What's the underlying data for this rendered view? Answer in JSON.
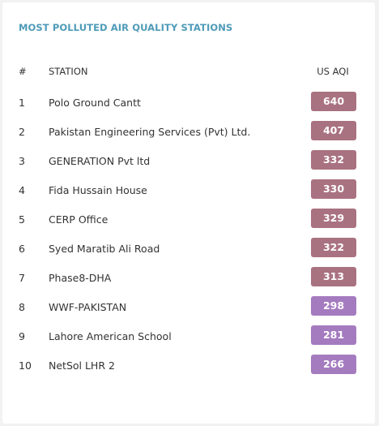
{
  "title": "MOST POLLUTED AIR QUALITY STATIONS",
  "headers": {
    "rank": "#",
    "station": "STATION",
    "aqi": "US AQI"
  },
  "colors": {
    "hazardous": "#a97280",
    "very_unhealthy": "#a57bbf",
    "title": "#4f9bb8"
  },
  "stations": [
    {
      "rank": "1",
      "name": "Polo Ground Cantt",
      "aqi": "640",
      "level": "hazardous"
    },
    {
      "rank": "2",
      "name": "Pakistan Engineering Services (Pvt) Ltd.",
      "aqi": "407",
      "level": "hazardous"
    },
    {
      "rank": "3",
      "name": "GENERATION Pvt ltd",
      "aqi": "332",
      "level": "hazardous"
    },
    {
      "rank": "4",
      "name": "Fida Hussain House",
      "aqi": "330",
      "level": "hazardous"
    },
    {
      "rank": "5",
      "name": "CERP Office",
      "aqi": "329",
      "level": "hazardous"
    },
    {
      "rank": "6",
      "name": "Syed Maratib Ali Road",
      "aqi": "322",
      "level": "hazardous"
    },
    {
      "rank": "7",
      "name": "Phase8-DHA",
      "aqi": "313",
      "level": "hazardous"
    },
    {
      "rank": "8",
      "name": "WWF-PAKISTAN",
      "aqi": "298",
      "level": "very_unhealthy"
    },
    {
      "rank": "9",
      "name": "Lahore American School",
      "aqi": "281",
      "level": "very_unhealthy"
    },
    {
      "rank": "10",
      "name": "NetSol LHR 2",
      "aqi": "266",
      "level": "very_unhealthy"
    }
  ]
}
